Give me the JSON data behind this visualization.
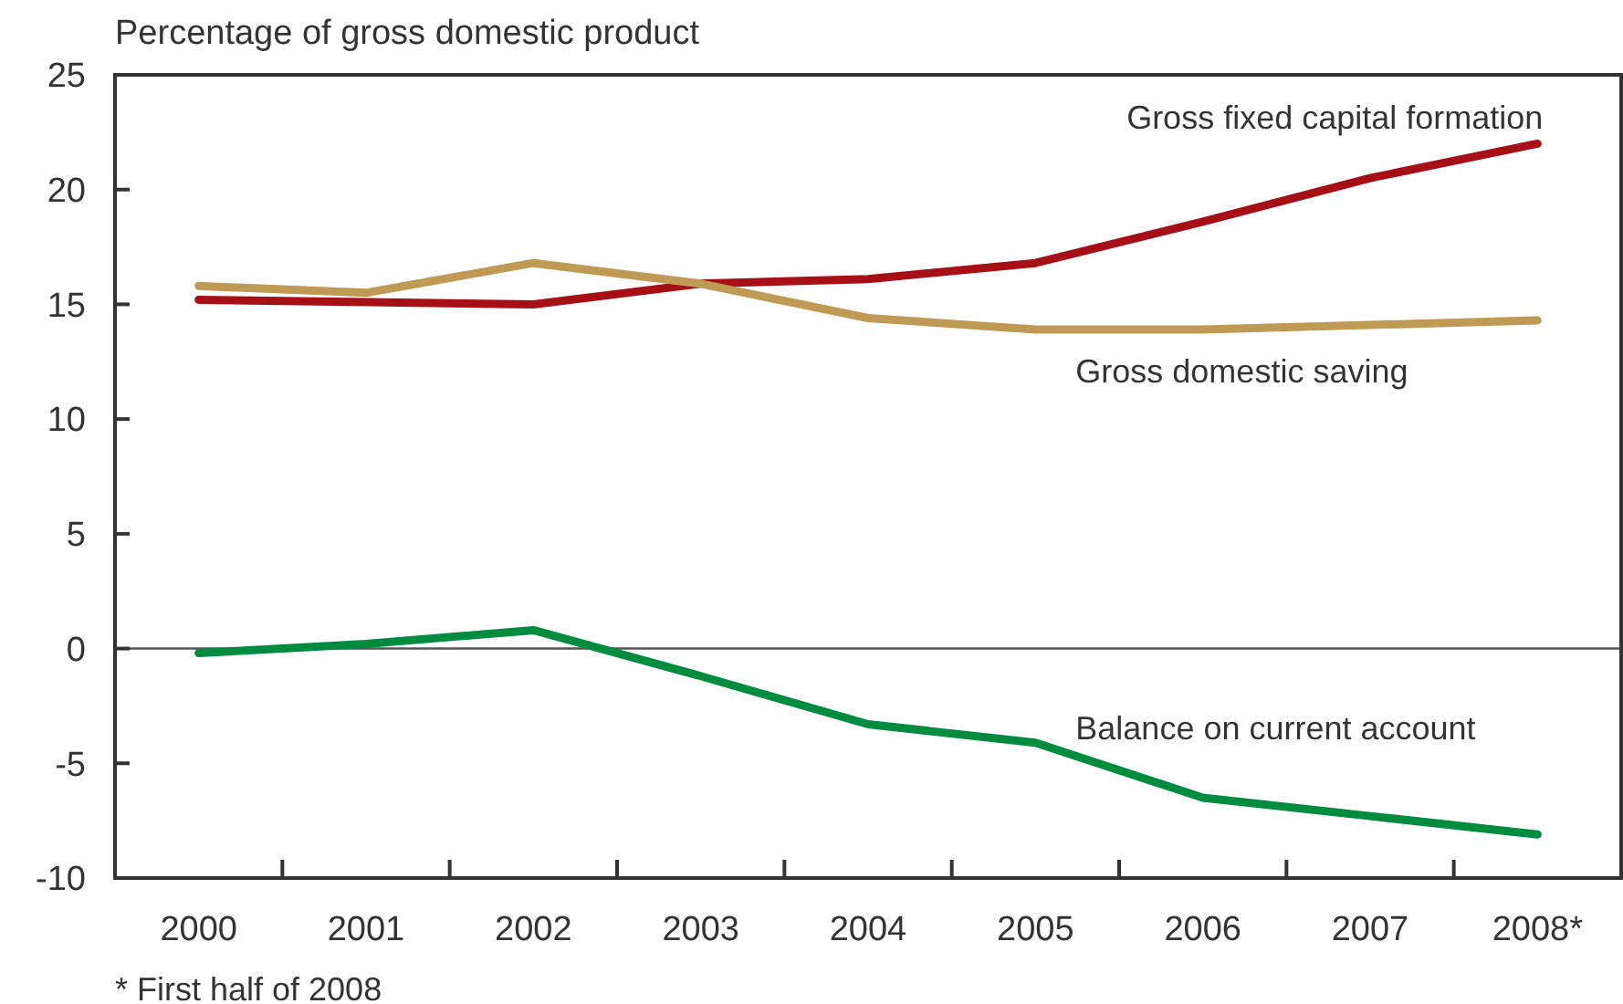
{
  "chart_data": {
    "type": "line",
    "ylabel": "Percentage of gross domestic product",
    "categories": [
      "2000",
      "2001",
      "2002",
      "2003",
      "2004",
      "2005",
      "2006",
      "2007",
      "2008*"
    ],
    "series": [
      {
        "name": "Gross fixed capital formation",
        "color": "#a50f15",
        "values": [
          15.2,
          15.1,
          15.0,
          15.9,
          16.1,
          16.8,
          18.6,
          20.5,
          22.0
        ]
      },
      {
        "name": "Gross domestic saving",
        "color": "#bf9a55",
        "values": [
          15.8,
          15.5,
          16.8,
          15.9,
          14.4,
          13.9,
          13.9,
          14.1,
          14.3
        ]
      },
      {
        "name": "Balance on current account",
        "color": "#008c3f",
        "values": [
          -0.2,
          0.2,
          0.8,
          -1.2,
          -3.3,
          -4.1,
          -6.5,
          -7.3,
          -8.1
        ]
      }
    ],
    "ylim": [
      -10,
      25
    ],
    "yticks": [
      -10,
      -5,
      0,
      5,
      10,
      15,
      20,
      25
    ],
    "ref_lines": [
      {
        "axis": "y",
        "value": 0,
        "color": "#555555"
      }
    ],
    "annotations": [
      "* First half of 2008"
    ],
    "grid": false,
    "marker": "none",
    "line_style": "solid"
  }
}
